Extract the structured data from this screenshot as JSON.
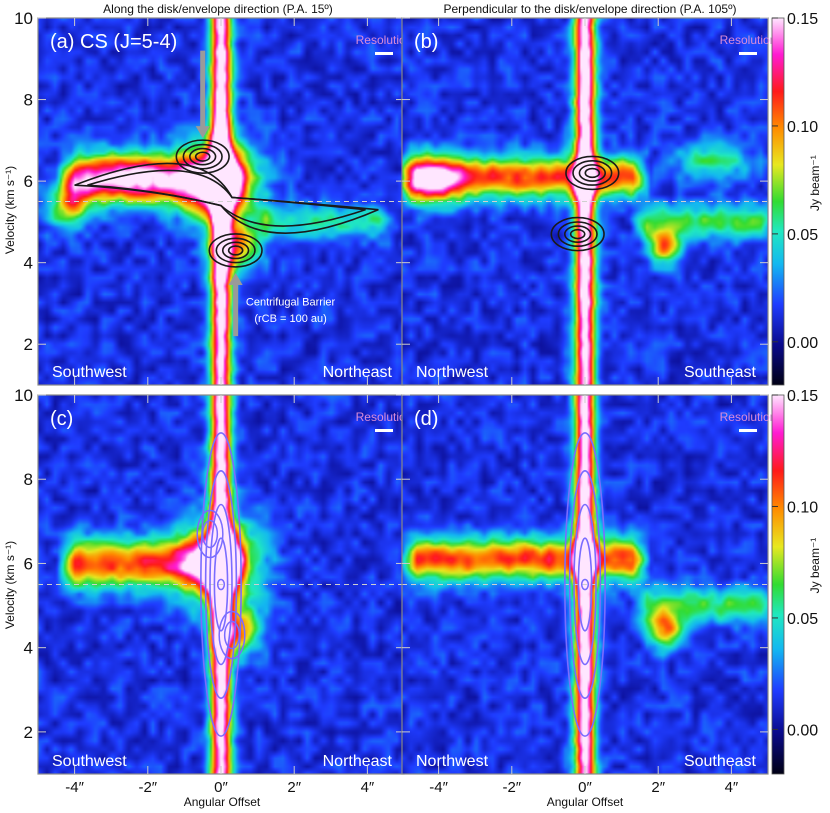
{
  "titles": {
    "left": "Along the disk/envelope direction (P.A. 15º)",
    "right": "Perpendicular to the disk/envelope direction (P.A. 105º)"
  },
  "axes": {
    "xlabel": "Angular Offset",
    "ylabel": "Velocity (km s⁻¹)",
    "colorbar_label": "Jy beam⁻¹",
    "x_ticks": [
      -4,
      -2,
      0,
      2,
      4
    ],
    "x_tick_labels": [
      "-4″",
      "-2″",
      "0″",
      "2″",
      "4″"
    ],
    "y_ticks": [
      2,
      4,
      6,
      8,
      10
    ],
    "y_tick_labels": [
      "2",
      "4",
      "6",
      "8",
      "10"
    ],
    "colorbar_ticks": [
      0.0,
      0.05,
      0.1,
      0.15
    ],
    "colorbar_tick_labels": [
      "0.00",
      "0.05",
      "0.10",
      "0.15"
    ]
  },
  "resolution_label": "Resolution",
  "panels": [
    {
      "id": "a",
      "label": "(a) CS (J=5-4)",
      "corner_left": "Southwest",
      "corner_right": "Northeast"
    },
    {
      "id": "b",
      "label": "(b)",
      "corner_left": "Northwest",
      "corner_right": "Southeast"
    },
    {
      "id": "c",
      "label": "(c)",
      "corner_left": "Southwest",
      "corner_right": "Northeast"
    },
    {
      "id": "d",
      "label": "(d)",
      "corner_left": "Northwest",
      "corner_right": "Southeast"
    }
  ],
  "annotation": {
    "line1": "Centrifugal Barrier",
    "line2": "(rCB = 100 au)"
  },
  "chart_data": [
    {
      "type": "heatmap",
      "panel": "a",
      "title": "Along the disk/envelope direction (P.A. 15º)",
      "xlabel": "Angular Offset",
      "ylabel": "Velocity (km s⁻¹)",
      "xlim": [
        -5,
        5
      ],
      "ylim": [
        1,
        10
      ],
      "clim": [
        -0.02,
        0.15
      ],
      "systemic_velocity": 5.5,
      "colorscale": [
        "#000014",
        "#0a0a8c",
        "#1f3cff",
        "#13b8f0",
        "#20e8c0",
        "#32dc32",
        "#e8e820",
        "#ff8c00",
        "#ff1a1a",
        "#ff1ad2",
        "#ffe6ff"
      ],
      "emission": [
        {
          "type": "gauss",
          "x": 0,
          "y": 6,
          "sx": 0.2,
          "sy": 10,
          "amp": 0.16
        },
        {
          "type": "ridge",
          "x0": -4.2,
          "x1": 0.5,
          "v": 6.0,
          "slope": 0,
          "sv": 0.4,
          "amp": 0.1
        },
        {
          "type": "gauss",
          "x": -2.5,
          "y": 6.2,
          "sx": 1.0,
          "sy": 0.4,
          "amp": 0.06
        },
        {
          "type": "gauss",
          "x": 0,
          "y": 6,
          "sx": 0.7,
          "sy": 0.7,
          "amp": 0.12
        },
        {
          "type": "gauss",
          "x": 0.5,
          "y": 4.4,
          "sx": 0.4,
          "sy": 0.4,
          "amp": 0.08
        },
        {
          "type": "gauss",
          "x": -4.2,
          "y": 5.4,
          "sx": 0.4,
          "sy": 0.4,
          "amp": 0.07
        },
        {
          "type": "ridge",
          "x0": 1,
          "x1": 4.5,
          "v": 5.0,
          "slope": 0,
          "sv": 0.3,
          "amp": 0.04
        },
        {
          "type": "noise",
          "amp": 0.012
        }
      ],
      "contours": [
        {
          "type": "model-rings",
          "color": "#1a1a1a",
          "blobs": [
            [
              -0.5,
              6.6
            ],
            [
              0.4,
              4.3
            ]
          ],
          "envelope": [
            [
              -4.0,
              6.0
            ],
            [
              4.3,
              5.2
            ]
          ]
        }
      ],
      "arrows": [
        {
          "x": -0.5,
          "y_from": 9.2,
          "y_to": 7.3,
          "dir": "down"
        },
        {
          "x": 0.4,
          "y_from": 2.2,
          "y_to": 3.5,
          "dir": "up"
        }
      ]
    },
    {
      "type": "heatmap",
      "panel": "b",
      "title": "Perpendicular to the disk/envelope direction (P.A. 105º)",
      "xlabel": "Angular Offset",
      "ylabel": "Velocity (km s⁻¹)",
      "xlim": [
        -5,
        5
      ],
      "ylim": [
        1,
        10
      ],
      "clim": [
        -0.02,
        0.15
      ],
      "systemic_velocity": 5.5,
      "emission": [
        {
          "type": "gauss",
          "x": 0,
          "y": 6,
          "sx": 0.2,
          "sy": 10,
          "amp": 0.16
        },
        {
          "type": "ridge",
          "x0": -4.8,
          "x1": 1.5,
          "v": 6.1,
          "slope": 0,
          "sv": 0.35,
          "amp": 0.1
        },
        {
          "type": "gauss",
          "x": -4.2,
          "y": 6.0,
          "sx": 0.6,
          "sy": 0.4,
          "amp": 0.08
        },
        {
          "type": "ridge",
          "x0": 1.5,
          "x1": 5,
          "v": 5.0,
          "slope": 0,
          "sv": 0.3,
          "amp": 0.05
        },
        {
          "type": "gauss",
          "x": 2.2,
          "y": 4.4,
          "sx": 0.3,
          "sy": 0.3,
          "amp": 0.09
        },
        {
          "type": "gauss",
          "x": 3.5,
          "y": 6.5,
          "sx": 0.7,
          "sy": 0.3,
          "amp": 0.05
        },
        {
          "type": "noise",
          "amp": 0.012
        }
      ],
      "contours": [
        {
          "type": "blobs",
          "color": "#1a1a1a",
          "blobs": [
            [
              0.2,
              6.2
            ],
            [
              -0.2,
              4.7
            ]
          ]
        }
      ]
    },
    {
      "type": "heatmap",
      "panel": "c",
      "xlabel": "Angular Offset",
      "ylabel": "Velocity (km s⁻¹)",
      "xlim": [
        -5,
        5
      ],
      "ylim": [
        1,
        10
      ],
      "clim": [
        -0.02,
        0.15
      ],
      "systemic_velocity": 5.5,
      "emission": [
        {
          "type": "gauss",
          "x": 0,
          "y": 6,
          "sx": 0.2,
          "sy": 10,
          "amp": 0.16
        },
        {
          "type": "ridge",
          "x0": -4.2,
          "x1": 0.5,
          "v": 6.0,
          "slope": 0,
          "sv": 0.4,
          "amp": 0.1
        },
        {
          "type": "gauss",
          "x": 0,
          "y": 6,
          "sx": 0.7,
          "sy": 0.7,
          "amp": 0.12
        },
        {
          "type": "gauss",
          "x": 0.5,
          "y": 4.4,
          "sx": 0.4,
          "sy": 0.4,
          "amp": 0.08
        },
        {
          "type": "noise",
          "amp": 0.012
        }
      ],
      "contours": [
        {
          "type": "model-keplerian",
          "color": "#7a6cff"
        }
      ]
    },
    {
      "type": "heatmap",
      "panel": "d",
      "xlabel": "Angular Offset",
      "ylabel": "Velocity (km s⁻¹)",
      "xlim": [
        -5,
        5
      ],
      "ylim": [
        1,
        10
      ],
      "clim": [
        -0.02,
        0.15
      ],
      "systemic_velocity": 5.5,
      "emission": [
        {
          "type": "gauss",
          "x": 0,
          "y": 6,
          "sx": 0.2,
          "sy": 10,
          "amp": 0.16
        },
        {
          "type": "ridge",
          "x0": -4.8,
          "x1": 1.5,
          "v": 6.1,
          "slope": 0,
          "sv": 0.35,
          "amp": 0.1
        },
        {
          "type": "ridge",
          "x0": 1.5,
          "x1": 5,
          "v": 5.0,
          "slope": 0,
          "sv": 0.3,
          "amp": 0.05
        },
        {
          "type": "gauss",
          "x": 2.2,
          "y": 4.4,
          "sx": 0.3,
          "sy": 0.3,
          "amp": 0.09
        },
        {
          "type": "noise",
          "amp": 0.012
        }
      ],
      "contours": [
        {
          "type": "model-vertical",
          "color": "#7a6cff"
        }
      ]
    }
  ]
}
